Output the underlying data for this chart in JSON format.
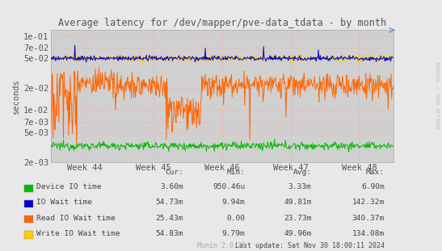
{
  "title": "Average latency for /dev/mapper/pve-data_tdata - by month",
  "ylabel": "seconds",
  "xlabel_ticks": [
    "Week 44",
    "Week 45",
    "Week 46",
    "Week 47",
    "Week 48"
  ],
  "yticks": [
    0.002,
    0.005,
    0.007,
    0.01,
    0.02,
    0.05,
    0.07,
    0.1
  ],
  "ytick_labels": [
    "2e-03",
    "5e-03",
    "7e-03",
    "1e-02",
    "2e-02",
    "5e-02",
    "7e-02",
    "1e-01"
  ],
  "ymin": 0.002,
  "ymax": 0.12,
  "bg_color": "#e8e8e8",
  "plot_bg_color": "#d0d0d0",
  "grid_color": "#ff9999",
  "title_color": "#555555",
  "axis_color": "#555555",
  "watermark": "RRDTOOL / TOBI OETIKER",
  "munin_label": "Munin 2.0.75",
  "last_update": "Last update: Sat Nov 30 18:00:11 2024",
  "legend": [
    {
      "label": "Device IO time",
      "color": "#00bb00",
      "cur": "3.60m",
      "min": "950.46u",
      "avg": "3.33m",
      "max": "6.90m"
    },
    {
      "label": "IO Wait time",
      "color": "#0000cc",
      "cur": "54.73m",
      "min": "9.94m",
      "avg": "49.81m",
      "max": "142.32m"
    },
    {
      "label": "Read IO Wait time",
      "color": "#ff6600",
      "cur": "25.43m",
      "min": "0.00",
      "avg": "23.73m",
      "max": "340.37m"
    },
    {
      "label": "Write IO Wait time",
      "color": "#ffcc00",
      "cur": "54.83m",
      "min": "9.79m",
      "avg": "49.96m",
      "max": "134.08m"
    }
  ],
  "n_points": 600,
  "seed": 12345
}
